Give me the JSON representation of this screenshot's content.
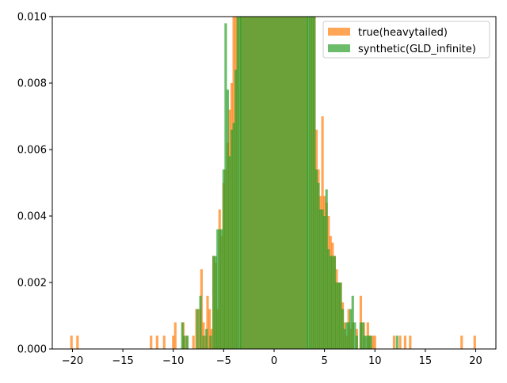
{
  "chart_data": {
    "type": "bar",
    "title": "",
    "xlabel": "",
    "ylabel": "",
    "xlim": [
      -22,
      22
    ],
    "ylim": [
      0,
      0.01
    ],
    "grid": false,
    "legend_position": "top-right",
    "bin_width": 0.25,
    "xticks": [
      -20,
      -15,
      -10,
      -5,
      0,
      5,
      10,
      15,
      20
    ],
    "yticks": [
      0.0,
      0.002,
      0.004,
      0.006,
      0.008,
      0.01
    ],
    "xtick_labels": [
      "−20",
      "−15",
      "−10",
      "−5",
      "0",
      "5",
      "10",
      "15",
      "20"
    ],
    "ytick_labels": [
      "0.000",
      "0.002",
      "0.004",
      "0.006",
      "0.008",
      "0.010"
    ],
    "legend": [
      {
        "name": "true(heavytailed)",
        "color": "#ff7f0e"
      },
      {
        "name": "synthetic(GLD_infinite)",
        "color": "#2ca02c"
      }
    ],
    "series": [
      {
        "name": "true(heavytailed)",
        "color": "#ff7f0e",
        "opacity": 0.7,
        "bins": [
          [
            -20.1,
            0.0004
          ],
          [
            -19.5,
            0.0004
          ],
          [
            -12.2,
            0.0004
          ],
          [
            -11.6,
            0.0004
          ],
          [
            -10.9,
            0.0004
          ],
          [
            -10.0,
            0.0004
          ],
          [
            -9.8,
            0.0008
          ],
          [
            -9.0,
            0.0008
          ],
          [
            -8.7,
            0.0004
          ],
          [
            -8.0,
            0.0004
          ],
          [
            -7.7,
            0.0012
          ],
          [
            -7.4,
            0.0012
          ],
          [
            -7.2,
            0.0024
          ],
          [
            -7.0,
            0.0008
          ],
          [
            -6.8,
            0.0004
          ],
          [
            -6.6,
            0.0016
          ],
          [
            -6.4,
            0.0012
          ],
          [
            -6.2,
            0.0006
          ],
          [
            -6.0,
            0.0028
          ],
          [
            -5.8,
            0.0026
          ],
          [
            -5.6,
            0.0012
          ],
          [
            -5.4,
            0.0042
          ],
          [
            -5.2,
            0.0034
          ],
          [
            -5.0,
            0.005
          ],
          [
            -4.8,
            0.0054
          ],
          [
            -4.6,
            0.0062
          ],
          [
            -4.4,
            0.0072
          ],
          [
            -4.2,
            0.008
          ],
          [
            -4.0,
            0.01
          ],
          [
            -3.8,
            0.01
          ],
          [
            -3.6,
            0.01
          ],
          [
            3.6,
            0.01
          ],
          [
            3.8,
            0.01
          ],
          [
            4.0,
            0.01
          ],
          [
            4.2,
            0.0066
          ],
          [
            4.4,
            0.0054
          ],
          [
            4.6,
            0.0046
          ],
          [
            4.8,
            0.007
          ],
          [
            5.0,
            0.0046
          ],
          [
            5.2,
            0.0044
          ],
          [
            5.4,
            0.004
          ],
          [
            5.6,
            0.0034
          ],
          [
            5.8,
            0.0032
          ],
          [
            6.0,
            0.0028
          ],
          [
            6.2,
            0.0024
          ],
          [
            6.4,
            0.002
          ],
          [
            6.6,
            0.002
          ],
          [
            6.8,
            0.0014
          ],
          [
            7.0,
            0.0008
          ],
          [
            7.2,
            0.0004
          ],
          [
            7.4,
            0.0012
          ],
          [
            7.6,
            0.0006
          ],
          [
            7.8,
            0.0008
          ],
          [
            8.2,
            0.0006
          ],
          [
            8.6,
            0.0016
          ],
          [
            8.9,
            0.0008
          ],
          [
            9.3,
            0.0008
          ],
          [
            9.5,
            0.0004
          ],
          [
            9.8,
            0.0004
          ],
          [
            10.0,
            0.0004
          ],
          [
            11.9,
            0.0004
          ],
          [
            12.5,
            0.0004
          ],
          [
            13.0,
            0.0004
          ],
          [
            13.5,
            0.0004
          ],
          [
            18.6,
            0.0004
          ],
          [
            19.9,
            0.0004
          ]
        ]
      },
      {
        "name": "synthetic(GLD_infinite)",
        "color": "#2ca02c",
        "opacity": 0.7,
        "bins": [
          [
            -9.1,
            0.0008
          ],
          [
            -8.9,
            0.0004
          ],
          [
            -8.6,
            0.0004
          ],
          [
            -7.6,
            0.0012
          ],
          [
            -7.3,
            0.0016
          ],
          [
            -7.0,
            0.0004
          ],
          [
            -6.7,
            0.0006
          ],
          [
            -6.3,
            0.0004
          ],
          [
            -6.0,
            0.0028
          ],
          [
            -5.8,
            0.0028
          ],
          [
            -5.6,
            0.0036
          ],
          [
            -5.4,
            0.0036
          ],
          [
            -5.2,
            0.0036
          ],
          [
            -5.0,
            0.0054
          ],
          [
            -4.8,
            0.0098
          ],
          [
            -4.6,
            0.0078
          ],
          [
            -4.4,
            0.0058
          ],
          [
            -4.2,
            0.0066
          ],
          [
            -4.0,
            0.0068
          ],
          [
            -3.8,
            0.0084
          ],
          [
            -3.6,
            0.01
          ],
          [
            -3.4,
            0.01
          ],
          [
            3.4,
            0.01
          ],
          [
            3.6,
            0.01
          ],
          [
            3.8,
            0.01
          ],
          [
            4.0,
            0.01
          ],
          [
            4.2,
            0.0054
          ],
          [
            4.4,
            0.005
          ],
          [
            4.6,
            0.0042
          ],
          [
            4.8,
            0.0042
          ],
          [
            5.0,
            0.004
          ],
          [
            5.2,
            0.0048
          ],
          [
            5.4,
            0.003
          ],
          [
            5.6,
            0.0028
          ],
          [
            5.8,
            0.0028
          ],
          [
            6.0,
            0.0028
          ],
          [
            6.2,
            0.002
          ],
          [
            6.4,
            0.002
          ],
          [
            6.6,
            0.002
          ],
          [
            6.8,
            0.0012
          ],
          [
            7.0,
            0.0006
          ],
          [
            7.2,
            0.0008
          ],
          [
            7.4,
            0.0008
          ],
          [
            7.6,
            0.0012
          ],
          [
            7.8,
            0.0016
          ],
          [
            8.0,
            0.0008
          ],
          [
            8.2,
            0.0004
          ],
          [
            8.6,
            0.0008
          ],
          [
            8.8,
            0.0008
          ],
          [
            9.0,
            0.0004
          ],
          [
            9.2,
            0.0004
          ],
          [
            9.4,
            0.0004
          ],
          [
            9.6,
            0.0004
          ],
          [
            12.2,
            0.0004
          ]
        ]
      }
    ],
    "central_block": {
      "from": -3.4,
      "to": 3.4,
      "value": 0.01
    }
  }
}
